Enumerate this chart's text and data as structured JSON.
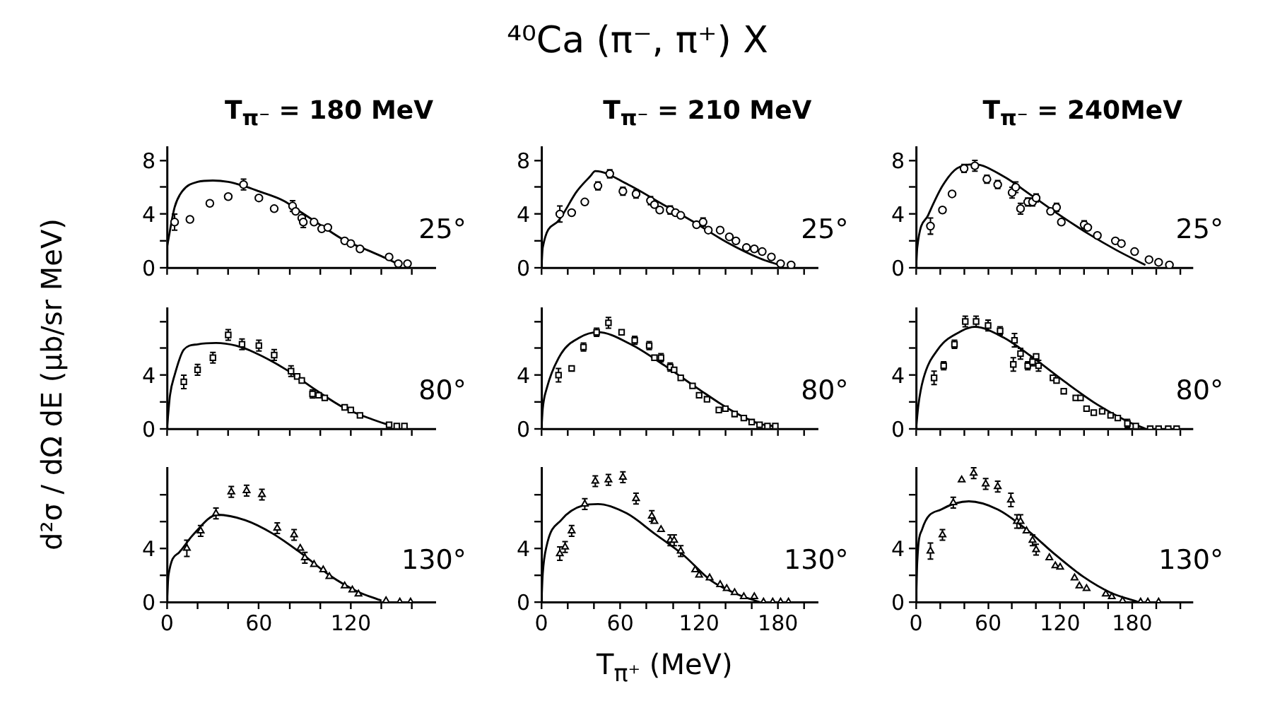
{
  "chart_data": [
    {
      "type": "scatter",
      "subtitle": "T$_{π⁻}$ = 180 MeV",
      "xlim": [
        0,
        175
      ],
      "ylim": [
        0,
        9
      ],
      "xticks": [
        {
          "value": 0,
          "label": null
        },
        {
          "value": 20,
          "label": null
        },
        {
          "value": 40,
          "label": null
        },
        {
          "value": 60,
          "label": null
        },
        {
          "value": 80,
          "label": null
        },
        {
          "value": 100,
          "label": null
        },
        {
          "value": 120,
          "label": null
        },
        {
          "value": 140,
          "label": null
        },
        {
          "value": 160,
          "label": null
        }
      ],
      "yticks": [
        0,
        {
          "value": 2,
          "label": null
        },
        4,
        {
          "value": 6,
          "label": null
        },
        8
      ],
      "tick_labels": "y",
      "annotations": [
        "25°"
      ],
      "series": [
        {
          "type": "line",
          "marker": "none",
          "color": "#000000",
          "x": [
            0,
            5,
            10,
            20,
            30,
            40,
            50,
            60,
            76,
            88,
            100,
            115,
            131,
            143,
            152
          ],
          "values": [
            1.5,
            4.5,
            5.7,
            6.4,
            6.5,
            6.4,
            6.1,
            5.7,
            5.0,
            4.1,
            3.2,
            2.1,
            1.3,
            0.7,
            0.2
          ]
        },
        {
          "type": "scatter",
          "marker": "circle",
          "color": "#000000",
          "x": [
            5,
            15,
            28,
            40,
            50,
            60,
            70,
            82,
            84,
            88,
            89,
            96,
            101,
            105,
            116,
            120,
            126,
            145,
            151,
            157
          ],
          "values": [
            3.4,
            3.6,
            4.8,
            5.3,
            6.2,
            5.2,
            4.4,
            4.6,
            4.2,
            3.7,
            3.4,
            3.4,
            2.9,
            3.0,
            2.0,
            1.8,
            1.4,
            0.8,
            0.3,
            0.3
          ],
          "errors": [
            0.6,
            null,
            null,
            null,
            0.4,
            null,
            null,
            0.4,
            null,
            null,
            0.4,
            null,
            null,
            null,
            null,
            null,
            null,
            null,
            null,
            null
          ]
        }
      ]
    },
    {
      "type": "scatter",
      "ylabel": "d²σ / dΩ dE  (μb/sr MeV)",
      "xlim": [
        0,
        175
      ],
      "ylim": [
        0,
        9
      ],
      "xticks": [
        {
          "value": 0,
          "label": null
        },
        {
          "value": 20,
          "label": null
        },
        {
          "value": 40,
          "label": null
        },
        {
          "value": 60,
          "label": null
        },
        {
          "value": 80,
          "label": null
        },
        {
          "value": 100,
          "label": null
        },
        {
          "value": 120,
          "label": null
        },
        {
          "value": 140,
          "label": null
        },
        {
          "value": 160,
          "label": null
        }
      ],
      "yticks": [
        0,
        {
          "value": 2,
          "label": null
        },
        4,
        {
          "value": 6,
          "label": null
        },
        {
          "value": 8,
          "label": null
        }
      ],
      "tick_labels": "y",
      "annotations": [
        "80°"
      ],
      "series": [
        {
          "type": "line",
          "marker": "none",
          "color": "#000000",
          "x": [
            0,
            2,
            5,
            11,
            20,
            32,
            45,
            57,
            78,
            97,
            115,
            134,
            147
          ],
          "values": [
            0,
            2.5,
            4,
            5.9,
            6.3,
            6.4,
            6.2,
            5.7,
            4.4,
            2.9,
            1.6,
            0.7,
            0.2
          ]
        },
        {
          "type": "scatter",
          "marker": "square",
          "color": "#000000",
          "x": [
            11,
            20,
            30,
            40,
            49,
            60,
            70,
            81,
            85,
            88,
            95,
            99,
            103,
            116,
            120,
            126,
            145,
            150,
            155
          ],
          "values": [
            3.5,
            4.4,
            5.3,
            7.0,
            6.3,
            6.2,
            5.5,
            4.3,
            3.9,
            3.6,
            2.6,
            2.5,
            2.3,
            1.6,
            1.4,
            1.0,
            0.3,
            0.2,
            0.2
          ],
          "errors": [
            0.5,
            0.4,
            0.4,
            0.4,
            0.4,
            0.4,
            0.4,
            0.4,
            null,
            null,
            0.3,
            null,
            null,
            null,
            null,
            null,
            null,
            null,
            null
          ]
        }
      ]
    },
    {
      "type": "scatter",
      "xlim": [
        0,
        175
      ],
      "ylim": [
        0,
        10
      ],
      "xticks": [
        0,
        {
          "value": 20,
          "label": null
        },
        {
          "value": 40,
          "label": null
        },
        60,
        {
          "value": 80,
          "label": null
        },
        {
          "value": 100,
          "label": null
        },
        120,
        {
          "value": 140,
          "label": null
        },
        {
          "value": 160,
          "label": null
        }
      ],
      "yticks": [
        0,
        {
          "value": 2,
          "label": null
        },
        4,
        {
          "value": 6,
          "label": null
        },
        {
          "value": 8,
          "label": null
        }
      ],
      "annotations": [
        "130°"
      ],
      "series": [
        {
          "type": "line",
          "marker": "none",
          "color": "#000000",
          "x": [
            0,
            1,
            8,
            17,
            33,
            51,
            69,
            88,
            106,
            124,
            140
          ],
          "values": [
            0,
            2,
            3.7,
            5.0,
            6.5,
            6.1,
            5.1,
            3.6,
            2.0,
            0.8,
            0.1
          ]
        },
        {
          "type": "scatter",
          "marker": "triangle",
          "color": "#000000",
          "x": [
            13,
            22,
            32,
            42,
            52,
            62,
            72,
            83,
            87,
            90,
            96,
            102,
            106,
            116,
            121,
            125,
            143,
            152,
            159
          ],
          "values": [
            4.0,
            5.3,
            6.6,
            8.2,
            8.3,
            8.0,
            5.5,
            5.0,
            4.0,
            3.3,
            2.8,
            2.4,
            1.9,
            1.2,
            0.9,
            0.6,
            0.1,
            0,
            0
          ],
          "errors": [
            0.6,
            0.4,
            0.4,
            0.4,
            0.4,
            0.4,
            0.4,
            0.4,
            null,
            0.4,
            null,
            null,
            null,
            null,
            null,
            null,
            null,
            null,
            null
          ]
        }
      ]
    },
    {
      "type": "scatter",
      "title": "⁴⁰Ca (π⁻, π⁺) X",
      "subtitle": "T$_{π⁻}$ = 210 MeV",
      "xlim": [
        0,
        210
      ],
      "ylim": [
        0,
        9
      ],
      "xticks": [
        {
          "value": 0,
          "label": null
        },
        {
          "value": 20,
          "label": null
        },
        {
          "value": 40,
          "label": null
        },
        {
          "value": 60,
          "label": null
        },
        {
          "value": 80,
          "label": null
        },
        {
          "value": 100,
          "label": null
        },
        {
          "value": 120,
          "label": null
        },
        {
          "value": 140,
          "label": null
        },
        {
          "value": 160,
          "label": null
        },
        {
          "value": 180,
          "label": null
        },
        {
          "value": 200,
          "label": null
        }
      ],
      "yticks": [
        0,
        {
          "value": 2,
          "label": null
        },
        4,
        {
          "value": 6,
          "label": null
        },
        8
      ],
      "tick_labels": "y",
      "annotations": [
        "25°"
      ],
      "series": [
        {
          "type": "line",
          "marker": "none",
          "color": "#000000",
          "x": [
            0,
            1,
            12,
            27,
            37,
            41,
            66,
            91,
            116,
            141,
            166,
            181
          ],
          "values": [
            0,
            1.5,
            3.4,
            5.7,
            6.8,
            7.2,
            6.2,
            4.8,
            3.4,
            1.9,
            0.7,
            0.2
          ]
        },
        {
          "type": "scatter",
          "marker": "circle",
          "color": "#000000",
          "x": [
            14,
            23,
            33,
            43,
            52,
            62,
            72,
            83,
            86,
            90,
            98,
            102,
            106,
            118,
            123,
            127,
            136,
            143,
            148,
            156,
            162,
            168,
            175,
            182,
            190
          ],
          "values": [
            4.0,
            4.1,
            4.9,
            6.1,
            7.0,
            5.7,
            5.5,
            5.0,
            4.7,
            4.3,
            4.3,
            4.1,
            3.9,
            3.2,
            3.4,
            2.8,
            2.8,
            2.3,
            2.0,
            1.5,
            1.4,
            1.2,
            0.8,
            0.3,
            0.2
          ],
          "errors": [
            0.6,
            null,
            null,
            0.3,
            0.3,
            0.3,
            0.3,
            0.3,
            null,
            null,
            0.3,
            null,
            null,
            null,
            0.3,
            null,
            null,
            null,
            null,
            null,
            null,
            null,
            null,
            null,
            null
          ]
        }
      ]
    },
    {
      "type": "scatter",
      "xlim": [
        0,
        210
      ],
      "ylim": [
        0,
        9
      ],
      "xticks": [
        {
          "value": 0,
          "label": null
        },
        {
          "value": 20,
          "label": null
        },
        {
          "value": 40,
          "label": null
        },
        {
          "value": 60,
          "label": null
        },
        {
          "value": 80,
          "label": null
        },
        {
          "value": 100,
          "label": null
        },
        {
          "value": 120,
          "label": null
        },
        {
          "value": 140,
          "label": null
        },
        {
          "value": 160,
          "label": null
        },
        {
          "value": 180,
          "label": null
        },
        {
          "value": 200,
          "label": null
        }
      ],
      "yticks": [
        0,
        {
          "value": 2,
          "label": null
        },
        4,
        {
          "value": 6,
          "label": null
        },
        {
          "value": 8,
          "label": null
        }
      ],
      "tick_labels": "y",
      "annotations": [
        "80°"
      ],
      "series": [
        {
          "type": "line",
          "marker": "none",
          "color": "#000000",
          "x": [
            0,
            1,
            4,
            15,
            29,
            43,
            68,
            94,
            119,
            144,
            165,
            176
          ],
          "values": [
            0,
            1.5,
            3.0,
            5.6,
            6.8,
            7.2,
            6.3,
            4.7,
            3.0,
            1.4,
            0.4,
            0.2
          ]
        },
        {
          "type": "scatter",
          "marker": "square",
          "color": "#000000",
          "x": [
            13,
            23,
            32,
            42,
            51,
            61,
            71,
            82,
            86,
            91,
            98,
            101,
            106,
            115,
            120,
            126,
            135,
            140,
            147,
            154,
            160,
            166,
            172,
            178
          ],
          "values": [
            4.0,
            4.5,
            6.1,
            7.2,
            7.9,
            7.2,
            6.6,
            6.2,
            5.3,
            5.3,
            4.6,
            4.4,
            3.8,
            3.2,
            2.5,
            2.2,
            1.4,
            1.5,
            1.1,
            0.8,
            0.5,
            0.3,
            0.2,
            0.2
          ],
          "errors": [
            0.5,
            null,
            0.3,
            0.3,
            0.4,
            null,
            0.3,
            0.3,
            null,
            0.3,
            0.3,
            null,
            null,
            null,
            null,
            null,
            null,
            null,
            null,
            null,
            null,
            null,
            null,
            null
          ]
        }
      ]
    },
    {
      "type": "scatter",
      "xlabel": "T$_{π⁺}$ (MeV)",
      "xlim": [
        0,
        210
      ],
      "ylim": [
        0,
        10
      ],
      "xticks": [
        0,
        {
          "value": 20,
          "label": null
        },
        {
          "value": 40,
          "label": null
        },
        60,
        {
          "value": 80,
          "label": null
        },
        {
          "value": 100,
          "label": null
        },
        120,
        {
          "value": 140,
          "label": null
        },
        {
          "value": 160,
          "label": null
        },
        180,
        {
          "value": 200,
          "label": null
        }
      ],
      "yticks": [
        0,
        {
          "value": 2,
          "label": null
        },
        4,
        {
          "value": 6,
          "label": null
        },
        {
          "value": 8,
          "label": null
        }
      ],
      "annotations": [
        "130°"
      ],
      "series": [
        {
          "type": "line",
          "marker": "none",
          "color": "#000000",
          "x": [
            0,
            1,
            4,
            15,
            32,
            43,
            65,
            86,
            108,
            129,
            151,
            166
          ],
          "values": [
            0,
            2.1,
            4.2,
            6.1,
            7.2,
            7.3,
            6.6,
            5.1,
            3.5,
            1.6,
            0.5,
            0
          ]
        },
        {
          "type": "scatter",
          "marker": "triangle",
          "color": "#000000",
          "x": [
            14,
            18,
            23,
            33,
            41,
            51,
            62,
            72,
            84,
            86,
            91,
            98,
            101,
            106,
            117,
            120,
            128,
            136,
            141,
            147,
            154,
            162,
            169,
            176,
            182,
            188
          ],
          "values": [
            3.6,
            4.1,
            5.3,
            7.3,
            9.0,
            9.1,
            9.3,
            7.7,
            6.4,
            6.0,
            5.4,
            4.6,
            4.6,
            3.8,
            2.4,
            2.0,
            1.8,
            1.3,
            1.0,
            0.7,
            0.4,
            0.4,
            0,
            0,
            0,
            0
          ],
          "errors": [
            0.5,
            0.4,
            0.4,
            0.4,
            0.4,
            0.4,
            0.4,
            0.4,
            0.4,
            null,
            null,
            0.4,
            0.4,
            0.4,
            null,
            null,
            null,
            null,
            null,
            null,
            null,
            null,
            null,
            null,
            null,
            null
          ]
        }
      ]
    },
    {
      "type": "scatter",
      "subtitle": "T$_{π⁻}$ = 240MeV",
      "xlim": [
        0,
        230
      ],
      "ylim": [
        0,
        9
      ],
      "xticks": [
        {
          "value": 0,
          "label": null
        },
        {
          "value": 20,
          "label": null
        },
        {
          "value": 40,
          "label": null
        },
        {
          "value": 60,
          "label": null
        },
        {
          "value": 80,
          "label": null
        },
        {
          "value": 100,
          "label": null
        },
        {
          "value": 120,
          "label": null
        },
        {
          "value": 140,
          "label": null
        },
        {
          "value": 160,
          "label": null
        },
        {
          "value": 180,
          "label": null
        },
        {
          "value": 200,
          "label": null
        },
        {
          "value": 220,
          "label": null
        }
      ],
      "yticks": [
        0,
        {
          "value": 2,
          "label": null
        },
        4,
        {
          "value": 6,
          "label": null
        },
        8
      ],
      "tick_labels": "y",
      "annotations": [
        "25°"
      ],
      "series": [
        {
          "type": "line",
          "marker": "none",
          "color": "#000000",
          "x": [
            0,
            1,
            10,
            22,
            34,
            49,
            73,
            96,
            120,
            144,
            167,
            191
          ],
          "values": [
            0,
            1.5,
            3.9,
            6.1,
            7.4,
            7.7,
            6.8,
            5.4,
            3.9,
            2.5,
            1.3,
            0.2
          ]
        },
        {
          "type": "scatter",
          "marker": "circle",
          "color": "#000000",
          "x": [
            12,
            22,
            30,
            40,
            49,
            59,
            68,
            80,
            83,
            87,
            93,
            97,
            100,
            112,
            117,
            121,
            140,
            143,
            151,
            166,
            171,
            182,
            194,
            202,
            211
          ],
          "values": [
            3.1,
            4.3,
            5.5,
            7.4,
            7.6,
            6.6,
            6.2,
            5.6,
            6.0,
            4.4,
            4.9,
            4.9,
            5.2,
            4.2,
            4.5,
            3.4,
            3.2,
            3.0,
            2.4,
            2.0,
            1.8,
            1.2,
            0.6,
            0.4,
            0.2
          ],
          "errors": [
            0.6,
            null,
            null,
            0.3,
            0.4,
            0.3,
            0.3,
            0.4,
            0.4,
            0.4,
            0.3,
            0.3,
            0.3,
            null,
            0.3,
            null,
            0.3,
            null,
            null,
            null,
            null,
            null,
            null,
            null,
            null
          ]
        }
      ]
    },
    {
      "type": "scatter",
      "xlim": [
        0,
        230
      ],
      "ylim": [
        0,
        9
      ],
      "xticks": [
        {
          "value": 0,
          "label": null
        },
        {
          "value": 20,
          "label": null
        },
        {
          "value": 40,
          "label": null
        },
        {
          "value": 60,
          "label": null
        },
        {
          "value": 80,
          "label": null
        },
        {
          "value": 100,
          "label": null
        },
        {
          "value": 120,
          "label": null
        },
        {
          "value": 140,
          "label": null
        },
        {
          "value": 160,
          "label": null
        },
        {
          "value": 180,
          "label": null
        },
        {
          "value": 200,
          "label": null
        },
        {
          "value": 220,
          "label": null
        }
      ],
      "yticks": [
        0,
        {
          "value": 2,
          "label": null
        },
        4,
        {
          "value": 6,
          "label": null
        },
        {
          "value": 8,
          "label": null
        }
      ],
      "tick_labels": "y",
      "annotations": [
        "80°"
      ],
      "series": [
        {
          "type": "line",
          "marker": "none",
          "color": "#000000",
          "x": [
            0,
            2,
            6,
            18,
            38,
            49,
            73,
            96,
            124,
            151,
            175,
            191
          ],
          "values": [
            0,
            1.8,
            3.7,
            5.9,
            7.3,
            7.6,
            6.8,
            5.4,
            3.5,
            1.8,
            0.6,
            0
          ]
        },
        {
          "type": "scatter",
          "marker": "square",
          "color": "#000000",
          "x": [
            15,
            23,
            32,
            41,
            50,
            60,
            70,
            81,
            82,
            87,
            93,
            97,
            100,
            102,
            114,
            117,
            123,
            133,
            137,
            142,
            148,
            155,
            162,
            168,
            176,
            183,
            195,
            202,
            210,
            217
          ],
          "values": [
            3.8,
            4.7,
            6.3,
            8.0,
            8.0,
            7.7,
            7.3,
            4.8,
            6.6,
            5.6,
            4.7,
            5.0,
            5.4,
            4.7,
            3.8,
            3.6,
            2.8,
            2.3,
            2.3,
            1.5,
            1.2,
            1.3,
            1.0,
            0.8,
            0.4,
            0.2,
            0,
            0,
            0,
            0
          ],
          "errors": [
            0.5,
            0.3,
            0.3,
            0.4,
            0.4,
            0.4,
            0.3,
            0.5,
            0.5,
            0.4,
            0.3,
            0.3,
            null,
            0.4,
            null,
            null,
            null,
            null,
            null,
            null,
            null,
            null,
            null,
            null,
            0.3,
            null,
            null,
            null,
            null,
            null
          ]
        }
      ]
    },
    {
      "type": "scatter",
      "xlim": [
        0,
        230
      ],
      "ylim": [
        0,
        10
      ],
      "xticks": [
        0,
        {
          "value": 20,
          "label": null
        },
        {
          "value": 40,
          "label": null
        },
        60,
        {
          "value": 80,
          "label": null
        },
        {
          "value": 100,
          "label": null
        },
        120,
        {
          "value": 140,
          "label": null
        },
        {
          "value": 160,
          "label": null
        },
        180,
        {
          "value": 200,
          "label": null
        },
        {
          "value": 220,
          "label": null
        }
      ],
      "yticks": [
        0,
        {
          "value": 2,
          "label": null
        },
        4,
        {
          "value": 6,
          "label": null
        },
        {
          "value": 8,
          "label": null
        }
      ],
      "annotations": [
        "130°"
      ],
      "series": [
        {
          "type": "line",
          "marker": "none",
          "color": "#000000",
          "x": [
            0,
            1,
            5,
            21,
            44,
            68,
            92,
            115,
            139,
            162,
            185
          ],
          "values": [
            0,
            3,
            5.4,
            6.9,
            7.5,
            6.9,
            5.4,
            3.6,
            1.9,
            0.7,
            0
          ]
        },
        {
          "type": "scatter",
          "marker": "triangle",
          "color": "#000000",
          "x": [
            12,
            22,
            31,
            38,
            48,
            58,
            68,
            79,
            84,
            87,
            92,
            97,
            100,
            111,
            116,
            120,
            132,
            136,
            142,
            158,
            163,
            172,
            187,
            193,
            202
          ],
          "values": [
            3.8,
            5.0,
            7.4,
            9.1,
            9.6,
            8.8,
            8.6,
            7.6,
            6.0,
            6.0,
            5.3,
            4.6,
            3.9,
            3.3,
            2.7,
            2.6,
            1.8,
            1.2,
            1.0,
            0.6,
            0.4,
            0.1,
            0,
            0,
            0
          ],
          "errors": [
            0.6,
            0.4,
            0.4,
            null,
            0.4,
            0.4,
            0.4,
            0.5,
            0.5,
            0.5,
            null,
            0.4,
            0.4,
            null,
            null,
            null,
            null,
            null,
            null,
            null,
            null,
            null,
            null,
            null,
            null
          ]
        }
      ]
    }
  ]
}
